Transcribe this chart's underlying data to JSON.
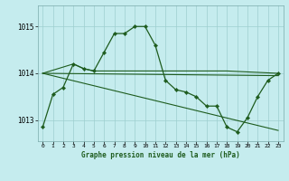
{
  "title": "Graphe pression niveau de la mer (hPa)",
  "bg_color": "#c5ecee",
  "grid_color": "#9dcfcf",
  "line_color": "#1e5c1e",
  "ylim": [
    1012.55,
    1015.45
  ],
  "yticks": [
    1013,
    1014,
    1015
  ],
  "xlim": [
    -0.5,
    23.5
  ],
  "xticks": [
    0,
    1,
    2,
    3,
    4,
    5,
    6,
    7,
    8,
    9,
    10,
    11,
    12,
    13,
    14,
    15,
    16,
    17,
    18,
    19,
    20,
    21,
    22,
    23
  ],
  "series": [
    {
      "x": [
        0,
        1,
        2,
        3,
        4,
        5,
        6,
        7,
        8,
        9,
        10,
        11,
        12,
        13,
        14,
        15,
        16,
        17,
        18,
        19,
        20,
        21,
        22,
        23
      ],
      "y": [
        1012.85,
        1013.55,
        1013.7,
        1014.2,
        1014.1,
        1014.05,
        1014.45,
        1014.85,
        1014.85,
        1015.0,
        1015.0,
        1014.6,
        1013.85,
        1013.65,
        1013.6,
        1013.5,
        1013.3,
        1013.3,
        1012.85,
        1012.75,
        1013.05,
        1013.5,
        1013.85,
        1014.0
      ],
      "marker": "D",
      "markersize": 2.5
    },
    {
      "x": [
        0,
        3,
        4,
        5,
        6,
        7,
        8,
        9,
        10,
        11,
        12,
        13,
        14,
        15,
        16,
        17,
        18,
        23
      ],
      "y": [
        1014.0,
        1014.2,
        1014.1,
        1014.05,
        1014.05,
        1014.05,
        1014.05,
        1014.05,
        1014.05,
        1014.05,
        1014.05,
        1014.05,
        1014.05,
        1014.05,
        1014.05,
        1014.05,
        1014.05,
        1014.0
      ],
      "marker": null
    },
    {
      "x": [
        0,
        23
      ],
      "y": [
        1014.0,
        1013.95
      ],
      "marker": null
    },
    {
      "x": [
        0,
        23
      ],
      "y": [
        1014.0,
        1012.78
      ],
      "marker": null
    }
  ]
}
